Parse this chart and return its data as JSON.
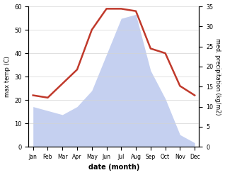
{
  "months": [
    "Jan",
    "Feb",
    "Mar",
    "Apr",
    "May",
    "Jun",
    "Jul",
    "Aug",
    "Sep",
    "Oct",
    "Nov",
    "Dec"
  ],
  "temp": [
    22,
    21,
    27,
    33,
    50,
    59,
    59,
    58,
    42,
    40,
    26,
    22
  ],
  "precip": [
    10,
    9,
    8,
    10,
    14,
    23,
    32,
    33,
    19,
    12,
    3,
    1
  ],
  "temp_color": "#c0392b",
  "precip_fill_color": "#c5d0f0",
  "temp_ylim": [
    0,
    60
  ],
  "precip_ylim": [
    0,
    35
  ],
  "temp_yticks": [
    0,
    10,
    20,
    30,
    40,
    50,
    60
  ],
  "precip_yticks": [
    0,
    5,
    10,
    15,
    20,
    25,
    30,
    35
  ],
  "xlabel": "date (month)",
  "ylabel_left": "max temp (C)",
  "ylabel_right": "med. precipitation (kg/m2)",
  "background_color": "#ffffff"
}
